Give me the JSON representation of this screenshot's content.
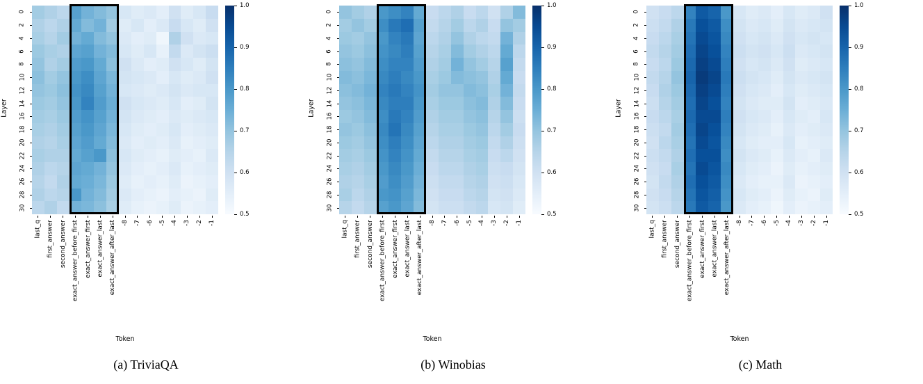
{
  "chart_data": [
    {
      "type": "heatmap",
      "caption": "(a) TriviaQA",
      "xlabel": "Token",
      "ylabel": "Layer",
      "colormap": "Blues",
      "vmin": 0.5,
      "vmax": 1.0,
      "colorbar_ticks": [
        "1.0",
        "0.9",
        "0.8",
        "0.7",
        "0.6",
        "0.5"
      ],
      "x_categories": [
        "last_q",
        "first_answer",
        "second_answer",
        "exact_answer_before_first",
        "exact_answer_first",
        "exact_answer_last",
        "exact_answer_after_last",
        "-8",
        "-7",
        "-6",
        "-5",
        "-4",
        "-3",
        "-2",
        "-1"
      ],
      "y_categories": [
        "0",
        "2",
        "4",
        "6",
        "8",
        "10",
        "12",
        "14",
        "16",
        "18",
        "20",
        "22",
        "24",
        "26",
        "28",
        "30"
      ],
      "highlight": {
        "start": 3,
        "end": 6
      },
      "values": [
        [
          0.68,
          0.66,
          0.64,
          0.78,
          0.74,
          0.72,
          0.7,
          0.58,
          0.56,
          0.57,
          0.55,
          0.6,
          0.56,
          0.58,
          0.62
        ],
        [
          0.66,
          0.64,
          0.66,
          0.76,
          0.72,
          0.74,
          0.68,
          0.56,
          0.58,
          0.55,
          0.57,
          0.62,
          0.58,
          0.56,
          0.6
        ],
        [
          0.67,
          0.65,
          0.68,
          0.74,
          0.76,
          0.72,
          0.7,
          0.57,
          0.55,
          0.56,
          0.52,
          0.66,
          0.6,
          0.57,
          0.58
        ],
        [
          0.69,
          0.67,
          0.66,
          0.77,
          0.78,
          0.74,
          0.72,
          0.58,
          0.56,
          0.58,
          0.54,
          0.63,
          0.57,
          0.59,
          0.61
        ],
        [
          0.7,
          0.66,
          0.68,
          0.79,
          0.8,
          0.76,
          0.71,
          0.6,
          0.57,
          0.55,
          0.56,
          0.6,
          0.58,
          0.56,
          0.59
        ],
        [
          0.71,
          0.68,
          0.7,
          0.8,
          0.82,
          0.77,
          0.73,
          0.59,
          0.58,
          0.57,
          0.55,
          0.58,
          0.56,
          0.57,
          0.6
        ],
        [
          0.7,
          0.69,
          0.71,
          0.81,
          0.83,
          0.78,
          0.74,
          0.58,
          0.57,
          0.56,
          0.57,
          0.59,
          0.57,
          0.58,
          0.58
        ],
        [
          0.69,
          0.68,
          0.7,
          0.8,
          0.84,
          0.79,
          0.75,
          0.6,
          0.58,
          0.57,
          0.56,
          0.58,
          0.55,
          0.56,
          0.59
        ],
        [
          0.68,
          0.67,
          0.69,
          0.79,
          0.81,
          0.78,
          0.74,
          0.59,
          0.57,
          0.56,
          0.55,
          0.57,
          0.56,
          0.57,
          0.58
        ],
        [
          0.67,
          0.66,
          0.68,
          0.78,
          0.8,
          0.77,
          0.73,
          0.58,
          0.56,
          0.55,
          0.56,
          0.58,
          0.55,
          0.56,
          0.57
        ],
        [
          0.66,
          0.65,
          0.67,
          0.77,
          0.79,
          0.76,
          0.72,
          0.57,
          0.55,
          0.56,
          0.55,
          0.57,
          0.54,
          0.55,
          0.56
        ],
        [
          0.67,
          0.66,
          0.66,
          0.76,
          0.78,
          0.8,
          0.71,
          0.58,
          0.56,
          0.55,
          0.54,
          0.56,
          0.55,
          0.54,
          0.57
        ],
        [
          0.66,
          0.64,
          0.65,
          0.77,
          0.76,
          0.74,
          0.7,
          0.57,
          0.55,
          0.54,
          0.55,
          0.57,
          0.54,
          0.55,
          0.56
        ],
        [
          0.65,
          0.63,
          0.66,
          0.76,
          0.75,
          0.73,
          0.69,
          0.56,
          0.54,
          0.55,
          0.54,
          0.56,
          0.53,
          0.54,
          0.55
        ],
        [
          0.66,
          0.64,
          0.65,
          0.8,
          0.74,
          0.72,
          0.68,
          0.57,
          0.55,
          0.54,
          0.53,
          0.55,
          0.54,
          0.53,
          0.56
        ],
        [
          0.64,
          0.66,
          0.63,
          0.74,
          0.73,
          0.71,
          0.67,
          0.56,
          0.54,
          0.53,
          0.54,
          0.56,
          0.53,
          0.54,
          0.55
        ]
      ]
    },
    {
      "type": "heatmap",
      "caption": "(b) Winobias",
      "xlabel": "Token",
      "ylabel": "Layer",
      "colormap": "Blues",
      "vmin": 0.5,
      "vmax": 1.0,
      "colorbar_ticks": [
        "1.0",
        "0.9",
        "0.8",
        "0.7",
        "0.6",
        "0.5"
      ],
      "x_categories": [
        "last_q",
        "first_answer",
        "second_answer",
        "exact_answer_before_first",
        "exact_answer_first",
        "exact_answer_last",
        "exact_answer_after_last",
        "-8",
        "-7",
        "-6",
        "-5",
        "-4",
        "-3",
        "-2",
        "-1"
      ],
      "y_categories": [
        "0",
        "2",
        "4",
        "6",
        "8",
        "10",
        "12",
        "14",
        "16",
        "18",
        "20",
        "22",
        "24",
        "26",
        "28",
        "30"
      ],
      "highlight": {
        "start": 3,
        "end": 6
      },
      "values": [
        [
          0.7,
          0.68,
          0.66,
          0.8,
          0.82,
          0.84,
          0.76,
          0.62,
          0.64,
          0.66,
          0.62,
          0.64,
          0.6,
          0.66,
          0.72
        ],
        [
          0.68,
          0.7,
          0.68,
          0.82,
          0.86,
          0.88,
          0.78,
          0.63,
          0.65,
          0.68,
          0.64,
          0.66,
          0.62,
          0.7,
          0.68
        ],
        [
          0.69,
          0.68,
          0.7,
          0.8,
          0.84,
          0.86,
          0.77,
          0.64,
          0.66,
          0.7,
          0.66,
          0.64,
          0.63,
          0.74,
          0.66
        ],
        [
          0.7,
          0.69,
          0.71,
          0.81,
          0.83,
          0.85,
          0.78,
          0.65,
          0.67,
          0.72,
          0.68,
          0.66,
          0.64,
          0.76,
          0.64
        ],
        [
          0.71,
          0.7,
          0.72,
          0.82,
          0.84,
          0.84,
          0.79,
          0.66,
          0.68,
          0.74,
          0.7,
          0.68,
          0.65,
          0.78,
          0.63
        ],
        [
          0.72,
          0.71,
          0.73,
          0.83,
          0.85,
          0.83,
          0.8,
          0.67,
          0.69,
          0.72,
          0.71,
          0.7,
          0.66,
          0.76,
          0.62
        ],
        [
          0.71,
          0.72,
          0.74,
          0.84,
          0.86,
          0.84,
          0.81,
          0.68,
          0.7,
          0.7,
          0.72,
          0.71,
          0.67,
          0.74,
          0.63
        ],
        [
          0.7,
          0.71,
          0.73,
          0.83,
          0.85,
          0.85,
          0.8,
          0.67,
          0.69,
          0.69,
          0.71,
          0.72,
          0.66,
          0.72,
          0.62
        ],
        [
          0.69,
          0.7,
          0.72,
          0.82,
          0.86,
          0.84,
          0.79,
          0.66,
          0.68,
          0.68,
          0.7,
          0.71,
          0.65,
          0.7,
          0.61
        ],
        [
          0.7,
          0.69,
          0.71,
          0.83,
          0.87,
          0.83,
          0.78,
          0.65,
          0.67,
          0.67,
          0.69,
          0.7,
          0.64,
          0.68,
          0.62
        ],
        [
          0.69,
          0.68,
          0.7,
          0.82,
          0.85,
          0.82,
          0.77,
          0.64,
          0.66,
          0.66,
          0.68,
          0.69,
          0.63,
          0.66,
          0.61
        ],
        [
          0.68,
          0.67,
          0.69,
          0.81,
          0.84,
          0.81,
          0.76,
          0.63,
          0.65,
          0.65,
          0.67,
          0.68,
          0.62,
          0.64,
          0.6
        ],
        [
          0.67,
          0.66,
          0.68,
          0.8,
          0.83,
          0.8,
          0.75,
          0.62,
          0.64,
          0.64,
          0.66,
          0.67,
          0.61,
          0.62,
          0.59
        ],
        [
          0.66,
          0.65,
          0.67,
          0.79,
          0.82,
          0.79,
          0.74,
          0.61,
          0.63,
          0.63,
          0.65,
          0.66,
          0.6,
          0.61,
          0.58
        ],
        [
          0.67,
          0.64,
          0.66,
          0.8,
          0.81,
          0.78,
          0.73,
          0.6,
          0.62,
          0.62,
          0.64,
          0.65,
          0.59,
          0.6,
          0.57
        ],
        [
          0.65,
          0.63,
          0.65,
          0.78,
          0.8,
          0.77,
          0.72,
          0.59,
          0.61,
          0.61,
          0.63,
          0.64,
          0.58,
          0.59,
          0.56
        ]
      ]
    },
    {
      "type": "heatmap",
      "caption": "(c) Math",
      "xlabel": "Token",
      "ylabel": "Layer",
      "colormap": "Blues",
      "vmin": 0.5,
      "vmax": 1.0,
      "colorbar_ticks": [
        "1.0",
        "0.9",
        "0.8",
        "0.7",
        "0.6",
        "0.5"
      ],
      "x_categories": [
        "last_q",
        "first_answer",
        "second_answer",
        "exact_answer_before_first",
        "exact_answer_first",
        "exact_answer_last",
        "exact_answer_after_last",
        "-8",
        "-7",
        "-6",
        "-5",
        "-4",
        "-3",
        "-2",
        "-1"
      ],
      "y_categories": [
        "0",
        "2",
        "4",
        "6",
        "8",
        "10",
        "12",
        "14",
        "16",
        "18",
        "20",
        "22",
        "24",
        "26",
        "28",
        "30"
      ],
      "highlight": {
        "start": 3,
        "end": 6
      },
      "values": [
        [
          0.6,
          0.62,
          0.64,
          0.84,
          0.92,
          0.9,
          0.8,
          0.58,
          0.56,
          0.57,
          0.55,
          0.58,
          0.56,
          0.57,
          0.6
        ],
        [
          0.61,
          0.63,
          0.66,
          0.86,
          0.94,
          0.92,
          0.82,
          0.59,
          0.57,
          0.58,
          0.56,
          0.59,
          0.57,
          0.58,
          0.59
        ],
        [
          0.62,
          0.64,
          0.67,
          0.87,
          0.95,
          0.93,
          0.83,
          0.6,
          0.58,
          0.59,
          0.57,
          0.6,
          0.58,
          0.59,
          0.58
        ],
        [
          0.63,
          0.65,
          0.68,
          0.88,
          0.96,
          0.94,
          0.84,
          0.61,
          0.59,
          0.6,
          0.58,
          0.61,
          0.57,
          0.58,
          0.59
        ],
        [
          0.62,
          0.64,
          0.69,
          0.89,
          0.97,
          0.95,
          0.85,
          0.6,
          0.58,
          0.59,
          0.57,
          0.6,
          0.56,
          0.57,
          0.58
        ],
        [
          0.63,
          0.65,
          0.7,
          0.9,
          0.98,
          0.96,
          0.86,
          0.61,
          0.59,
          0.58,
          0.56,
          0.59,
          0.57,
          0.58,
          0.59
        ],
        [
          0.62,
          0.66,
          0.69,
          0.89,
          0.97,
          0.95,
          0.85,
          0.6,
          0.58,
          0.57,
          0.55,
          0.58,
          0.56,
          0.57,
          0.58
        ],
        [
          0.61,
          0.65,
          0.68,
          0.88,
          0.96,
          0.94,
          0.84,
          0.59,
          0.57,
          0.56,
          0.56,
          0.59,
          0.55,
          0.56,
          0.57
        ],
        [
          0.62,
          0.64,
          0.67,
          0.89,
          0.95,
          0.95,
          0.85,
          0.6,
          0.58,
          0.57,
          0.55,
          0.58,
          0.56,
          0.55,
          0.58
        ],
        [
          0.61,
          0.63,
          0.68,
          0.88,
          0.96,
          0.94,
          0.84,
          0.59,
          0.57,
          0.56,
          0.54,
          0.57,
          0.55,
          0.56,
          0.57
        ],
        [
          0.6,
          0.64,
          0.67,
          0.87,
          0.95,
          0.93,
          0.83,
          0.58,
          0.56,
          0.55,
          0.55,
          0.58,
          0.54,
          0.55,
          0.56
        ],
        [
          0.61,
          0.63,
          0.66,
          0.88,
          0.94,
          0.94,
          0.82,
          0.59,
          0.57,
          0.56,
          0.54,
          0.57,
          0.55,
          0.54,
          0.57
        ],
        [
          0.6,
          0.62,
          0.67,
          0.87,
          0.95,
          0.93,
          0.83,
          0.58,
          0.56,
          0.55,
          0.53,
          0.56,
          0.54,
          0.55,
          0.56
        ],
        [
          0.59,
          0.63,
          0.66,
          0.88,
          0.94,
          0.92,
          0.82,
          0.57,
          0.55,
          0.54,
          0.54,
          0.57,
          0.53,
          0.54,
          0.55
        ],
        [
          0.6,
          0.62,
          0.65,
          0.87,
          0.93,
          0.91,
          0.81,
          0.58,
          0.56,
          0.55,
          0.53,
          0.56,
          0.54,
          0.53,
          0.56
        ],
        [
          0.59,
          0.61,
          0.64,
          0.86,
          0.92,
          0.9,
          0.8,
          0.57,
          0.55,
          0.54,
          0.52,
          0.55,
          0.53,
          0.54,
          0.55
        ]
      ]
    }
  ]
}
